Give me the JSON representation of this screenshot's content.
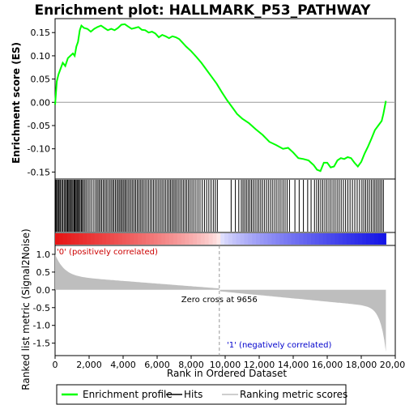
{
  "chart_data": {
    "type": "line",
    "title": "Enrichment plot: HALLMARK_P53_PATHWAY",
    "ylabel_top": "Enrichment score (ES)",
    "ylabel_bottom": "Ranked list metric (Signal2Noise)",
    "xlabel": "Rank in Ordered Dataset",
    "xlim": [
      0,
      20000
    ],
    "x_ticks": [
      0,
      2000,
      4000,
      6000,
      8000,
      10000,
      12000,
      14000,
      16000,
      18000,
      20000
    ],
    "x_tick_labels": [
      "0",
      "2,000",
      "4,000",
      "6,000",
      "8,000",
      "10,000",
      "12,000",
      "14,000",
      "16,000",
      "18,000",
      "20,000"
    ],
    "es_ylim": [
      -0.165,
      0.18
    ],
    "es_ticks": [
      0.15,
      0.1,
      0.05,
      0.0,
      -0.05,
      -0.1,
      -0.15
    ],
    "es_tick_labels": [
      "0.15",
      "0.10",
      "0.05",
      "0.00",
      "-0.05",
      "-0.10",
      "-0.15"
    ],
    "metric_ylim": [
      -1.85,
      1.25
    ],
    "metric_ticks": [
      1.0,
      0.5,
      0.0,
      -0.5,
      -1.0,
      -1.5
    ],
    "metric_tick_labels": [
      "1.0",
      "0.5",
      "0.0",
      "-0.5",
      "-1.0",
      "-1.5"
    ],
    "n_genes": 19450,
    "zero_cross": 9656,
    "zero_cross_label": "Zero cross at 9656",
    "positive_label": "'0' (positively correlated)",
    "negative_label": "'1' (negatively correlated)",
    "series": [
      {
        "name": "Enrichment profile",
        "color": "#00ff00",
        "x": [
          0,
          100,
          200,
          300,
          450,
          600,
          750,
          900,
          1050,
          1150,
          1250,
          1350,
          1450,
          1550,
          1700,
          1900,
          2100,
          2300,
          2500,
          2700,
          2900,
          3100,
          3300,
          3500,
          3700,
          3900,
          4100,
          4300,
          4500,
          4700,
          4900,
          5100,
          5300,
          5500,
          5700,
          5900,
          6100,
          6300,
          6500,
          6700,
          6900,
          7100,
          7300,
          7500,
          7700,
          8000,
          8300,
          8600,
          8900,
          9200,
          9500,
          9800,
          10100,
          10400,
          10700,
          11000,
          11400,
          11800,
          12200,
          12600,
          13000,
          13400,
          13700,
          14000,
          14300,
          14600,
          14900,
          15200,
          15400,
          15600,
          15800,
          16000,
          16200,
          16400,
          16600,
          16800,
          17000,
          17200,
          17400,
          17600,
          17800,
          18000,
          18200,
          18400,
          18600,
          18800,
          19000,
          19200,
          19300,
          19450
        ],
        "values": [
          -0.005,
          0.045,
          0.06,
          0.07,
          0.085,
          0.078,
          0.095,
          0.1,
          0.105,
          0.1,
          0.12,
          0.13,
          0.155,
          0.165,
          0.16,
          0.158,
          0.152,
          0.158,
          0.162,
          0.165,
          0.16,
          0.155,
          0.158,
          0.155,
          0.16,
          0.167,
          0.168,
          0.163,
          0.158,
          0.16,
          0.162,
          0.156,
          0.155,
          0.15,
          0.152,
          0.148,
          0.14,
          0.145,
          0.142,
          0.138,
          0.142,
          0.14,
          0.136,
          0.128,
          0.12,
          0.11,
          0.098,
          0.085,
          0.07,
          0.055,
          0.04,
          0.022,
          0.005,
          -0.01,
          -0.025,
          -0.035,
          -0.045,
          -0.058,
          -0.07,
          -0.085,
          -0.092,
          -0.1,
          -0.098,
          -0.108,
          -0.12,
          -0.122,
          -0.125,
          -0.135,
          -0.145,
          -0.148,
          -0.13,
          -0.13,
          -0.14,
          -0.138,
          -0.125,
          -0.12,
          -0.122,
          -0.118,
          -0.12,
          -0.13,
          -0.138,
          -0.128,
          -0.11,
          -0.095,
          -0.078,
          -0.06,
          -0.05,
          -0.04,
          -0.025,
          0.003
        ]
      }
    ],
    "hits": [
      40,
      90,
      150,
      210,
      280,
      330,
      420,
      470,
      560,
      610,
      680,
      740,
      800,
      860,
      920,
      990,
      1050,
      1120,
      1170,
      1230,
      1290,
      1340,
      1400,
      1470,
      1540,
      1600,
      1680,
      1760,
      1850,
      1950,
      2050,
      2160,
      2280,
      2390,
      2480,
      2570,
      2650,
      2740,
      2830,
      2920,
      3010,
      3100,
      3200,
      3290,
      3380,
      3460,
      3550,
      3640,
      3720,
      3800,
      3880,
      3960,
      4040,
      4120,
      4200,
      4290,
      4380,
      4470,
      4560,
      4650,
      4740,
      4830,
      4920,
      5010,
      5100,
      5190,
      5290,
      5390,
      5490,
      5590,
      5690,
      5790,
      5890,
      5990,
      6090,
      6190,
      6290,
      6390,
      6490,
      6590,
      6690,
      6780,
      6870,
      6960,
      7050,
      7140,
      7240,
      7340,
      7440,
      7540,
      7640,
      7740,
      7840,
      7940,
      8050,
      8160,
      8280,
      8400,
      8520,
      8650,
      8780,
      8910,
      9040,
      9170,
      9300,
      9420,
      9540,
      10350,
      10600,
      10800,
      10950,
      11050,
      11150,
      11250,
      11350,
      11450,
      11550,
      11650,
      11760,
      11870,
      11980,
      12090,
      12200,
      12320,
      12440,
      12560,
      12680,
      12800,
      12920,
      13040,
      13160,
      13280,
      13400,
      13520,
      13640,
      13780,
      14100,
      14350,
      14600,
      14850,
      15050,
      15250,
      15380,
      15500,
      15620,
      15740,
      15860,
      15980,
      16100,
      16220,
      16340,
      16460,
      16580,
      16700,
      16820,
      16950,
      17080,
      17210,
      17340,
      17480,
      17620,
      17760,
      17900,
      18040,
      18150,
      18260,
      18370,
      18480,
      18590,
      18700,
      18800,
      18900,
      19000,
      19100,
      19200,
      19300
    ]
  },
  "legend": {
    "items": [
      {
        "label": "Enrichment profile",
        "color": "#00ff00"
      },
      {
        "label": "Hits",
        "color": "#000000"
      },
      {
        "label": "Ranking metric scores",
        "color": "#bebebe"
      }
    ]
  }
}
